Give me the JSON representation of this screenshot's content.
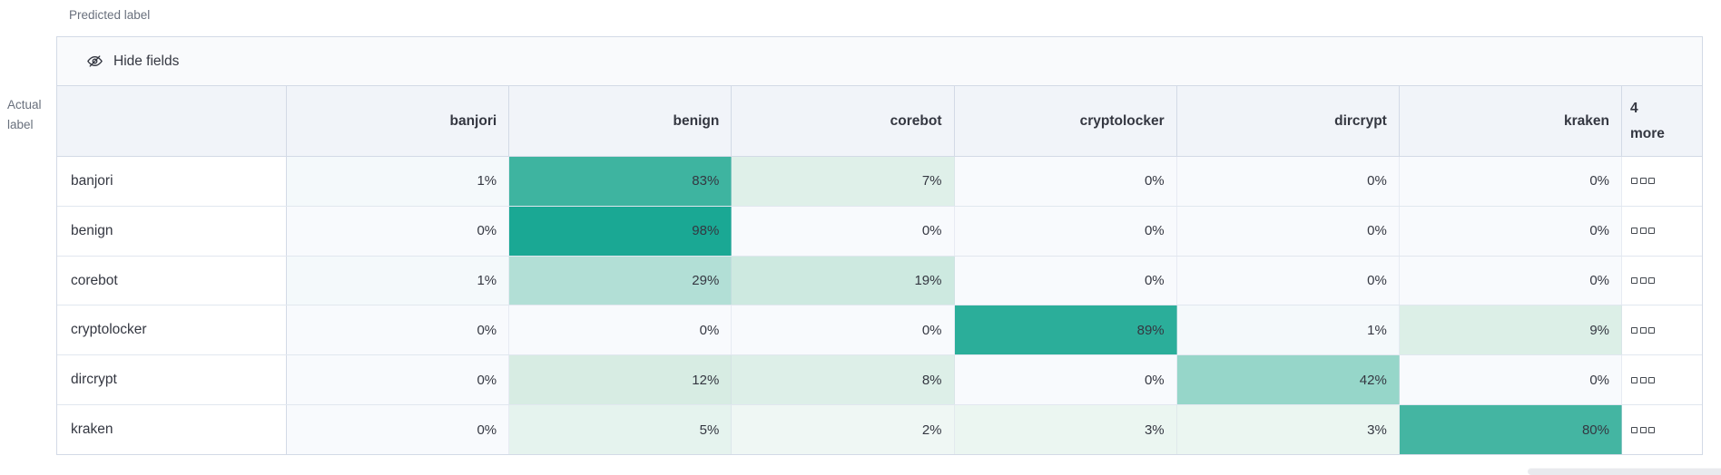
{
  "captions": {
    "predicted": "Predicted label",
    "actual_line1": "Actual",
    "actual_line2": "label"
  },
  "toolbar": {
    "hide_fields_label": "Hide fields",
    "icon": "eye-closed-icon"
  },
  "colors": {
    "accent_teal_max": "#1aa894",
    "header_bg": "#f1f4f9",
    "border": "#d3dae6"
  },
  "grid": {
    "header": {
      "columns": [
        "banjori",
        "benign",
        "corebot",
        "cryptolocker",
        "dircrypt",
        "kraken"
      ],
      "more": {
        "count": "4",
        "word": "more"
      }
    },
    "more_cell_icon": "boxes-horizontal-icon",
    "rows": [
      {
        "label": "banjori",
        "cells": [
          {
            "text": "1%",
            "bg": "#f4f9fb"
          },
          {
            "text": "83%",
            "bg": "#3eb4a0"
          },
          {
            "text": "7%",
            "bg": "#dff0e9"
          },
          {
            "text": "0%",
            "bg": "#f8fafd"
          },
          {
            "text": "0%",
            "bg": "#f8fafd"
          },
          {
            "text": "0%",
            "bg": "#f8fafd"
          }
        ]
      },
      {
        "label": "benign",
        "cells": [
          {
            "text": "0%",
            "bg": "#f8fafd"
          },
          {
            "text": "98%",
            "bg": "#1aa894"
          },
          {
            "text": "0%",
            "bg": "#f8fafd"
          },
          {
            "text": "0%",
            "bg": "#f8fafd"
          },
          {
            "text": "0%",
            "bg": "#f8fafd"
          },
          {
            "text": "0%",
            "bg": "#f8fafd"
          }
        ]
      },
      {
        "label": "corebot",
        "cells": [
          {
            "text": "1%",
            "bg": "#f4f9fb"
          },
          {
            "text": "29%",
            "bg": "#b2dfd6"
          },
          {
            "text": "19%",
            "bg": "#cde9e0"
          },
          {
            "text": "0%",
            "bg": "#f8fafd"
          },
          {
            "text": "0%",
            "bg": "#f8fafd"
          },
          {
            "text": "0%",
            "bg": "#f8fafd"
          }
        ]
      },
      {
        "label": "cryptolocker",
        "cells": [
          {
            "text": "0%",
            "bg": "#f8fafd"
          },
          {
            "text": "0%",
            "bg": "#f8fafd"
          },
          {
            "text": "0%",
            "bg": "#f8fafd"
          },
          {
            "text": "89%",
            "bg": "#2bae9a"
          },
          {
            "text": "1%",
            "bg": "#f4f9fb"
          },
          {
            "text": "9%",
            "bg": "#dcefe7"
          }
        ]
      },
      {
        "label": "dircrypt",
        "cells": [
          {
            "text": "0%",
            "bg": "#f8fafd"
          },
          {
            "text": "12%",
            "bg": "#d7ece3"
          },
          {
            "text": "8%",
            "bg": "#ddefe8"
          },
          {
            "text": "0%",
            "bg": "#f8fafd"
          },
          {
            "text": "42%",
            "bg": "#96d6c9"
          },
          {
            "text": "0%",
            "bg": "#f8fafd"
          }
        ]
      },
      {
        "label": "kraken",
        "cells": [
          {
            "text": "0%",
            "bg": "#f8fafd"
          },
          {
            "text": "5%",
            "bg": "#e5f3ee"
          },
          {
            "text": "2%",
            "bg": "#eff7f4"
          },
          {
            "text": "3%",
            "bg": "#ebf6f1"
          },
          {
            "text": "3%",
            "bg": "#ebf6f1"
          },
          {
            "text": "80%",
            "bg": "#44b5a2"
          }
        ]
      }
    ]
  }
}
